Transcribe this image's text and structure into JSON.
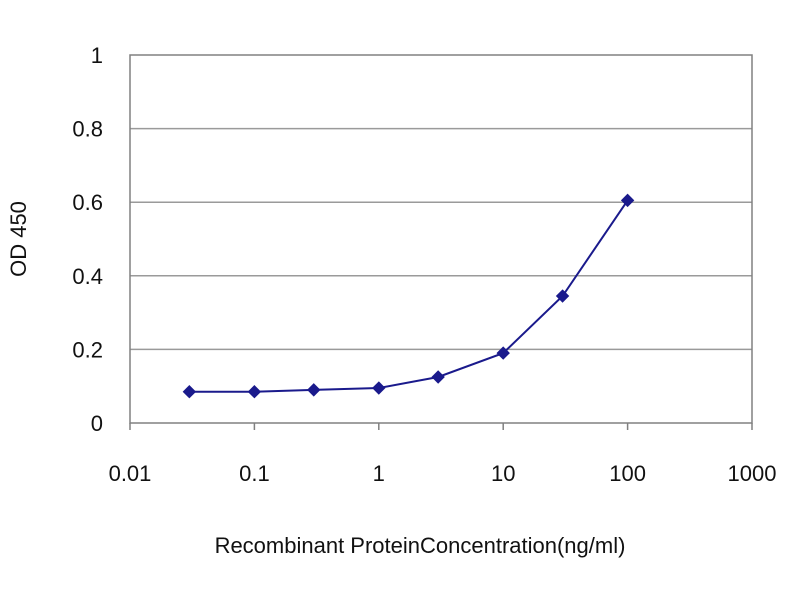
{
  "chart_data": {
    "type": "line",
    "title": "",
    "xlabel": "Recombinant ProteinConcentration(ng/ml)",
    "ylabel": "OD 450",
    "x_scale": "log",
    "xlim": [
      0.01,
      1000
    ],
    "ylim": [
      0,
      1
    ],
    "x_ticks": [
      0.01,
      0.1,
      1,
      10,
      100,
      1000
    ],
    "x_tick_labels": [
      "0.01",
      "0.1",
      "1",
      "10",
      "100",
      "1000"
    ],
    "y_ticks": [
      0,
      0.2,
      0.4,
      0.6,
      0.8,
      1
    ],
    "y_tick_labels": [
      "0",
      "0.2",
      "0.4",
      "0.6",
      "0.8",
      "1"
    ],
    "grid": "horizontal",
    "legend": "none",
    "series": [
      {
        "color": "#1a1a8c",
        "points": [
          {
            "x": 0.03,
            "y": 0.085
          },
          {
            "x": 0.1,
            "y": 0.085
          },
          {
            "x": 0.3,
            "y": 0.09
          },
          {
            "x": 1,
            "y": 0.095
          },
          {
            "x": 3,
            "y": 0.125
          },
          {
            "x": 10,
            "y": 0.19
          },
          {
            "x": 30,
            "y": 0.345
          },
          {
            "x": 100,
            "y": 0.605
          }
        ]
      }
    ]
  }
}
